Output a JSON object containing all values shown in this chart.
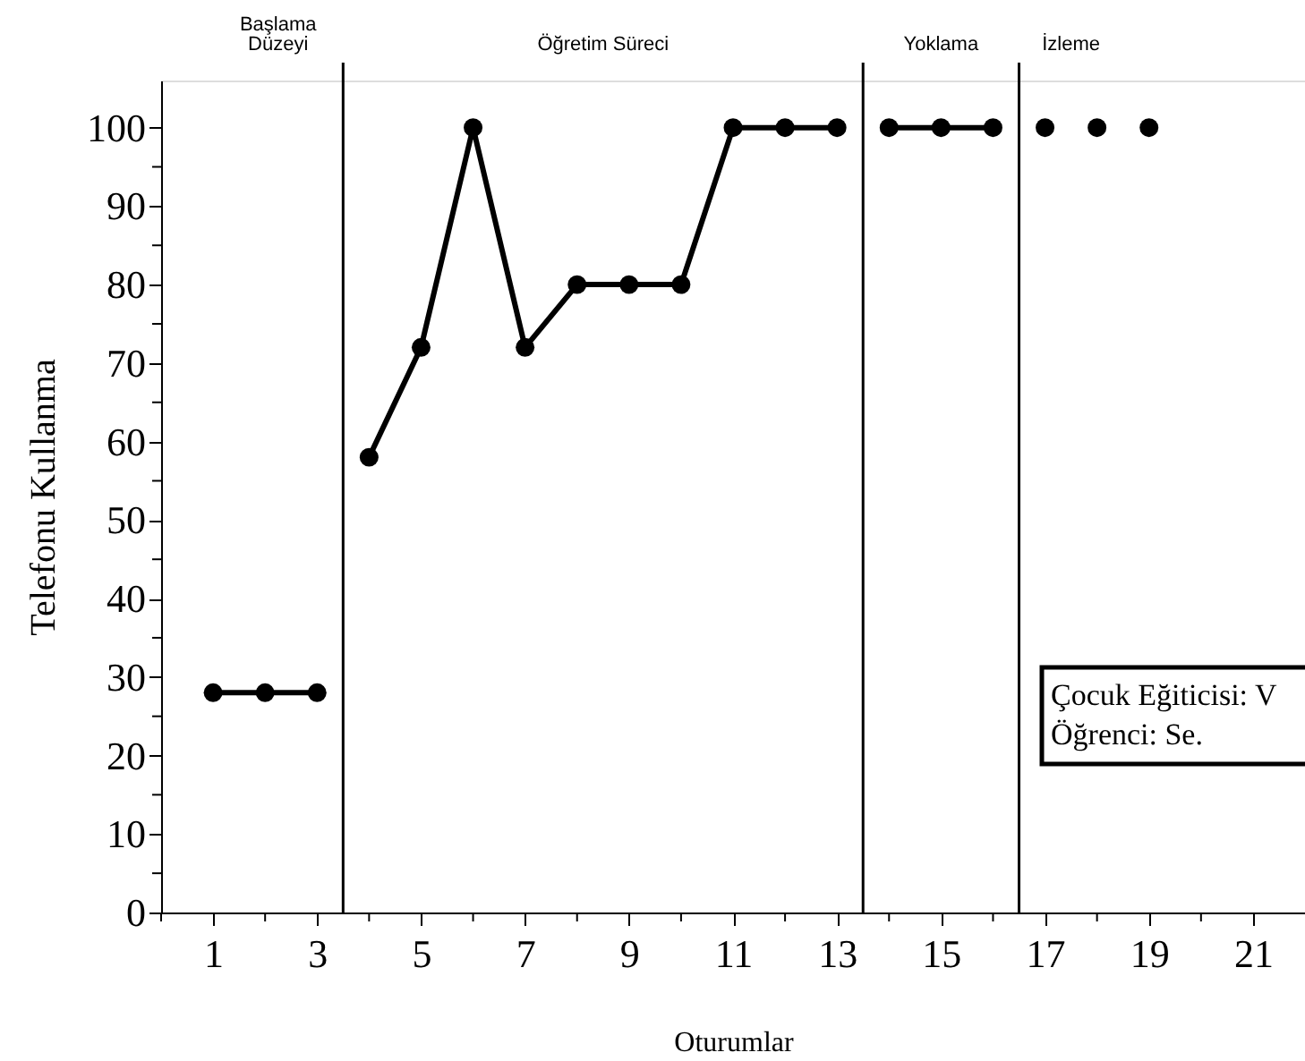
{
  "chart_data": {
    "type": "line",
    "xlabel": "Oturumlar",
    "ylabel": "Telefonu Kullanma",
    "xlim": [
      0,
      22
    ],
    "ylim": [
      0,
      106
    ],
    "xticks": [
      {
        "value": 0,
        "label": null
      },
      1,
      {
        "value": 2,
        "label": null
      },
      3,
      {
        "value": 4,
        "label": null
      },
      5,
      {
        "value": 6,
        "label": null
      },
      7,
      {
        "value": 8,
        "label": null
      },
      9,
      {
        "value": 10,
        "label": null
      },
      11,
      {
        "value": 12,
        "label": null
      },
      13,
      {
        "value": 14,
        "label": null
      },
      15,
      {
        "value": 16,
        "label": null
      },
      17,
      {
        "value": 18,
        "label": null
      },
      19,
      {
        "value": 20,
        "label": null
      },
      21
    ],
    "yticks": [
      0,
      {
        "value": 5,
        "label": null
      },
      10,
      {
        "value": 15,
        "label": null
      },
      20,
      {
        "value": 25,
        "label": null
      },
      30,
      {
        "value": 35,
        "label": null
      },
      40,
      {
        "value": 45,
        "label": null
      },
      50,
      {
        "value": 55,
        "label": null
      },
      60,
      {
        "value": 65,
        "label": null
      },
      70,
      {
        "value": 75,
        "label": null
      },
      80,
      {
        "value": 85,
        "label": null
      },
      90,
      {
        "value": 95,
        "label": null
      },
      100
    ],
    "series": [
      {
        "type": "line",
        "color": "#000000",
        "x": [
          1,
          2,
          3
        ],
        "values": [
          28,
          28,
          28
        ]
      },
      {
        "type": "line",
        "color": "#000000",
        "x": [
          4,
          5,
          6,
          7,
          8,
          9,
          10,
          11,
          12,
          13
        ],
        "values": [
          58,
          72,
          100,
          72,
          80,
          80,
          80,
          100,
          100,
          100
        ]
      },
      {
        "type": "line",
        "color": "#000000",
        "x": [
          14,
          15,
          16
        ],
        "values": [
          100,
          100,
          100
        ]
      },
      {
        "type": "scatter",
        "color": "#000000",
        "x": [
          17,
          18,
          19
        ],
        "values": [
          100,
          100,
          100
        ]
      }
    ],
    "marker": "circle",
    "grid": false,
    "ref_lines": [
      {
        "axis": "x",
        "value": 3.5,
        "color": "#000000"
      },
      {
        "axis": "x",
        "value": 13.5,
        "color": "#000000"
      },
      {
        "axis": "x",
        "value": 16.5,
        "color": "#000000"
      }
    ],
    "annotations": [
      "Başlama\nDüzeyi",
      "Öğretim Süreci",
      "Yoklama",
      "İzleme",
      "Çocuk Eğiticisi: V",
      "Öğrenci: Se."
    ]
  }
}
